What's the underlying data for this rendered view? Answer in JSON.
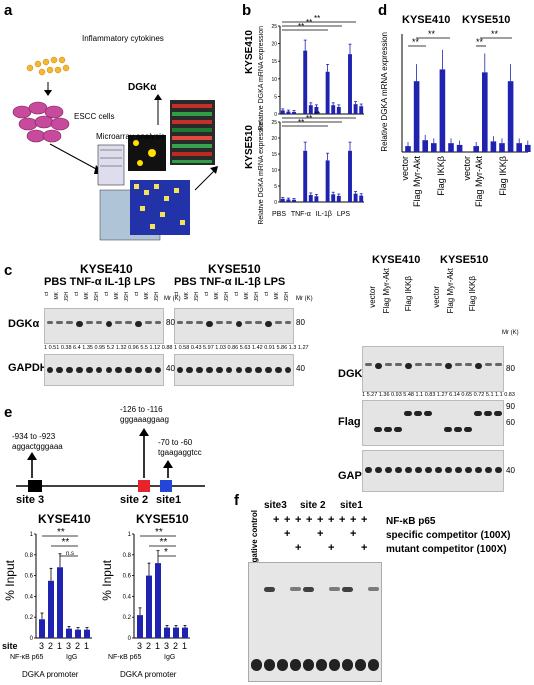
{
  "panel_a": {
    "letter": "a",
    "label_cytokines": "Inflammatory cytokines",
    "label_cells": "ESCC cells",
    "label_microarray": "Microarray analysis",
    "label_gene": "DGKα"
  },
  "panel_b": {
    "letter": "b",
    "top_line": "KYSE410",
    "bottom_line": "KYSE510",
    "ylabel": "Relative DGKA mRNA expression",
    "xticks": [
      "PBS",
      "TNF-α",
      "IL-1β",
      "LPS"
    ],
    "lane_labels": [
      "ct",
      "MK",
      "JSH"
    ],
    "sig": "**"
  },
  "panel_d": {
    "letter": "d",
    "lines": [
      "KYSE410",
      "KYSE510"
    ],
    "ylabel": "Relative DGKA mRNA expression",
    "group_labels": [
      "vector",
      "Flag Myr-Akt",
      "Flag IKKβ"
    ],
    "lane_labels_akt": [
      "ct",
      "MK",
      "JSH"
    ],
    "lane_labels_ikk": [
      "ct",
      "Su",
      "JSH"
    ],
    "sig": "**"
  },
  "panel_c": {
    "letter": "c",
    "left": {
      "lines": [
        "KYSE410",
        "KYSE510"
      ],
      "treatments": "PBS  TNF-α  IL-1β  LPS",
      "lanes": [
        "ct",
        "MK",
        "JSH",
        "ct",
        "MK",
        "JSH",
        "ct",
        "MK",
        "JSH",
        "ct",
        "MK",
        "JSH"
      ],
      "mw_label": "Mr (K)",
      "protein": "DGKα",
      "loading": "GAPDH",
      "mw_80": "80",
      "mw_40": "40",
      "ratios_410": "1 0.51 0.38 6.4 1.35 0.95 5.2 1.32 0.96 5.5 1.12 0.88",
      "ratios_510": "1 0.58 0.43 5.97 1.03 0.86 5.63 1.42 0.91 5.86 1.3 1.27"
    },
    "right": {
      "lines": [
        "KYSE410",
        "KYSE510"
      ],
      "groups_410": [
        "vector",
        "Flag Myr-Akt",
        "Flag IKKβ"
      ],
      "groups_510": [
        "vector",
        "Flag Myr-Akt",
        "Flag IKKβ"
      ],
      "lanes_akt": [
        "ct",
        "MK",
        "JSH"
      ],
      "lanes_ikk": [
        "ct",
        "Su",
        "JSH"
      ],
      "mw_label": "Mr (K)",
      "proteins": [
        "DGKα",
        "Flag",
        "GAPDH"
      ],
      "mw": [
        "80",
        "90",
        "60",
        "40"
      ],
      "ratios": "1 5.27 1.36 0.93 5.48 1.1 0.83 1.27 6.14 0.65 0.72 5.1 1.1 0.83"
    }
  },
  "panel_e": {
    "letter": "e",
    "sites": [
      {
        "name": "site 3",
        "range": "-934 to -923",
        "seq": "aggactgggaaa"
      },
      {
        "name": "site 2",
        "range": "-126 to -116",
        "seq": "gggaaaggaag"
      },
      {
        "name": "site1",
        "range": "-70 to -60",
        "seq": "tgaagaggtcc"
      }
    ],
    "ylabel": "% Input",
    "site_row_label": "site",
    "site_ticks": [
      "3",
      "2",
      "1",
      "3",
      "2",
      "1"
    ],
    "group_labels": [
      "NF-κB p65",
      "IgG"
    ],
    "promoter": "DGKA promoter",
    "sig_star": "*",
    "sig_dstar": "**",
    "sig_ns": "n.s"
  },
  "panel_f": {
    "letter": "f",
    "neg_control": "Negative control",
    "sites": [
      "site3",
      "site 2",
      "site1"
    ],
    "rows": [
      "NF-κB p65",
      "specific competitor (100X)",
      "mutant competitor (100X)"
    ],
    "plus": "+"
  },
  "chart_data": [
    {
      "type": "bar",
      "title": "KYSE410",
      "ylabel": "Relative DGKA mRNA expression",
      "categories": [
        "PBS ct",
        "PBS MK",
        "PBS JSH",
        "TNF-α ct",
        "TNF-α MK",
        "TNF-α JSH",
        "IL-1β ct",
        "IL-1β MK",
        "IL-1β JSH",
        "LPS ct",
        "LPS MK",
        "LPS JSH"
      ],
      "values": [
        1,
        0.7,
        0.6,
        18,
        2.5,
        2,
        12,
        2.5,
        2,
        17,
        2.8,
        2.2
      ],
      "ylim": [
        0,
        25
      ],
      "yticks": [
        0,
        5,
        10,
        15,
        20,
        25
      ]
    },
    {
      "type": "bar",
      "title": "KYSE510",
      "ylabel": "Relative DGKA mRNA expression",
      "categories": [
        "PBS ct",
        "PBS MK",
        "PBS JSH",
        "TNF-α ct",
        "TNF-α MK",
        "TNF-α JSH",
        "IL-1β ct",
        "IL-1β MK",
        "IL-1β JSH",
        "LPS ct",
        "LPS MK",
        "LPS JSH"
      ],
      "values": [
        1,
        0.8,
        0.7,
        16,
        2.2,
        1.8,
        13,
        2.4,
        1.9,
        16,
        2.6,
        2
      ],
      "ylim": [
        0,
        25
      ],
      "yticks": [
        0,
        5,
        10,
        15,
        20,
        25
      ]
    },
    {
      "type": "bar",
      "title": "KYSE410",
      "ylabel": "Relative DGKA mRNA expression",
      "categories": [
        "vector",
        "Myr-Akt ct",
        "Myr-Akt MK",
        "Myr-Akt JSH",
        "IKKβ ct",
        "IKKβ Su",
        "IKKβ JSH"
      ],
      "values": [
        1,
        12,
        2,
        1.5,
        14,
        1.5,
        1.2
      ],
      "ylim": [
        0,
        20
      ],
      "yticks": [
        0,
        5,
        10,
        15,
        20
      ]
    },
    {
      "type": "bar",
      "title": "KYSE510",
      "ylabel": "Relative DGKA mRNA expression",
      "categories": [
        "vector",
        "Myr-Akt ct",
        "Myr-Akt MK",
        "Myr-Akt JSH",
        "IKKβ ct",
        "IKKβ Su",
        "IKKβ JSH"
      ],
      "values": [
        1,
        13.5,
        1.8,
        1.5,
        12,
        1.5,
        1.2
      ],
      "ylim": [
        0,
        20
      ],
      "yticks": [
        0,
        5,
        10,
        15,
        20
      ]
    },
    {
      "type": "bar",
      "title": "KYSE410",
      "ylabel": "% Input",
      "categories": [
        "NF-κB p65 site 3",
        "NF-κB p65 site 2",
        "NF-κB p65 site 1",
        "IgG site 3",
        "IgG site 2",
        "IgG site 1"
      ],
      "values": [
        0.18,
        0.55,
        0.68,
        0.09,
        0.08,
        0.08
      ],
      "errors": [
        0.06,
        0.12,
        0.13,
        0.02,
        0.02,
        0.02
      ],
      "ylim": [
        0,
        1
      ],
      "yticks": [
        0,
        0.2,
        0.4,
        0.6,
        0.8,
        1
      ]
    },
    {
      "type": "bar",
      "title": "KYSE510",
      "ylabel": "% Input",
      "categories": [
        "NF-κB p65 site 3",
        "NF-κB p65 site 2",
        "NF-κB p65 site 1",
        "IgG site 3",
        "IgG site 2",
        "IgG site 1"
      ],
      "values": [
        0.22,
        0.6,
        0.72,
        0.1,
        0.1,
        0.1
      ],
      "errors": [
        0.07,
        0.12,
        0.12,
        0.02,
        0.02,
        0.02
      ],
      "ylim": [
        0,
        1
      ],
      "yticks": [
        0,
        0.2,
        0.4,
        0.6,
        0.8,
        1
      ]
    }
  ]
}
